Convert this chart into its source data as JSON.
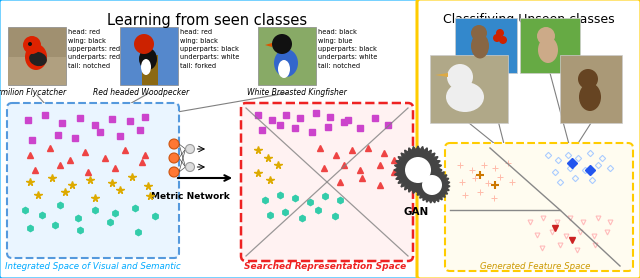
{
  "title_left": "Learning from seen classes",
  "title_right": "Classifiying Unseen classes",
  "label_integrated": "Integrated Space of Visual and Semantic",
  "label_searched": "Searched Representation Space",
  "label_generated": "Generated Feature Space",
  "label_metric": "Metric Network",
  "label_gan": "GAN",
  "bird1_name": "Vermilion Flycatcher",
  "bird1_attrs": "head: red\nwing: black\nupperparts: red\nunderparts: red\ntail: notched",
  "bird2_name": "Red headed Woodpecker",
  "bird2_attrs": "head: red\nwing: black\nupperparts: black\nunderparts: white\ntail: forked",
  "bird3_name": "White Breasted Kingfisher",
  "bird3_attrs": "head: black\nwing: blue\nupperparts: black\nunderparts: white\ntail: notched",
  "cyan_box_color": "#00aaff",
  "yellow_box_color": "#ffcc00",
  "red_dashed_color": "#ee2222",
  "blue_dashed_color": "#5599dd",
  "integrated_bg": "#eaf5ff",
  "searched_bg": "#fff2f2",
  "generated_bg": "#fffcf0",
  "purple": "#cc44cc",
  "red_tri": "#ee4444",
  "teal": "#33ccaa",
  "yellow_star": "#ddaa00",
  "blue_diamond": "#aaccff",
  "pink_heart": "#ffaaaa",
  "orange_cross": "#ffccaa"
}
